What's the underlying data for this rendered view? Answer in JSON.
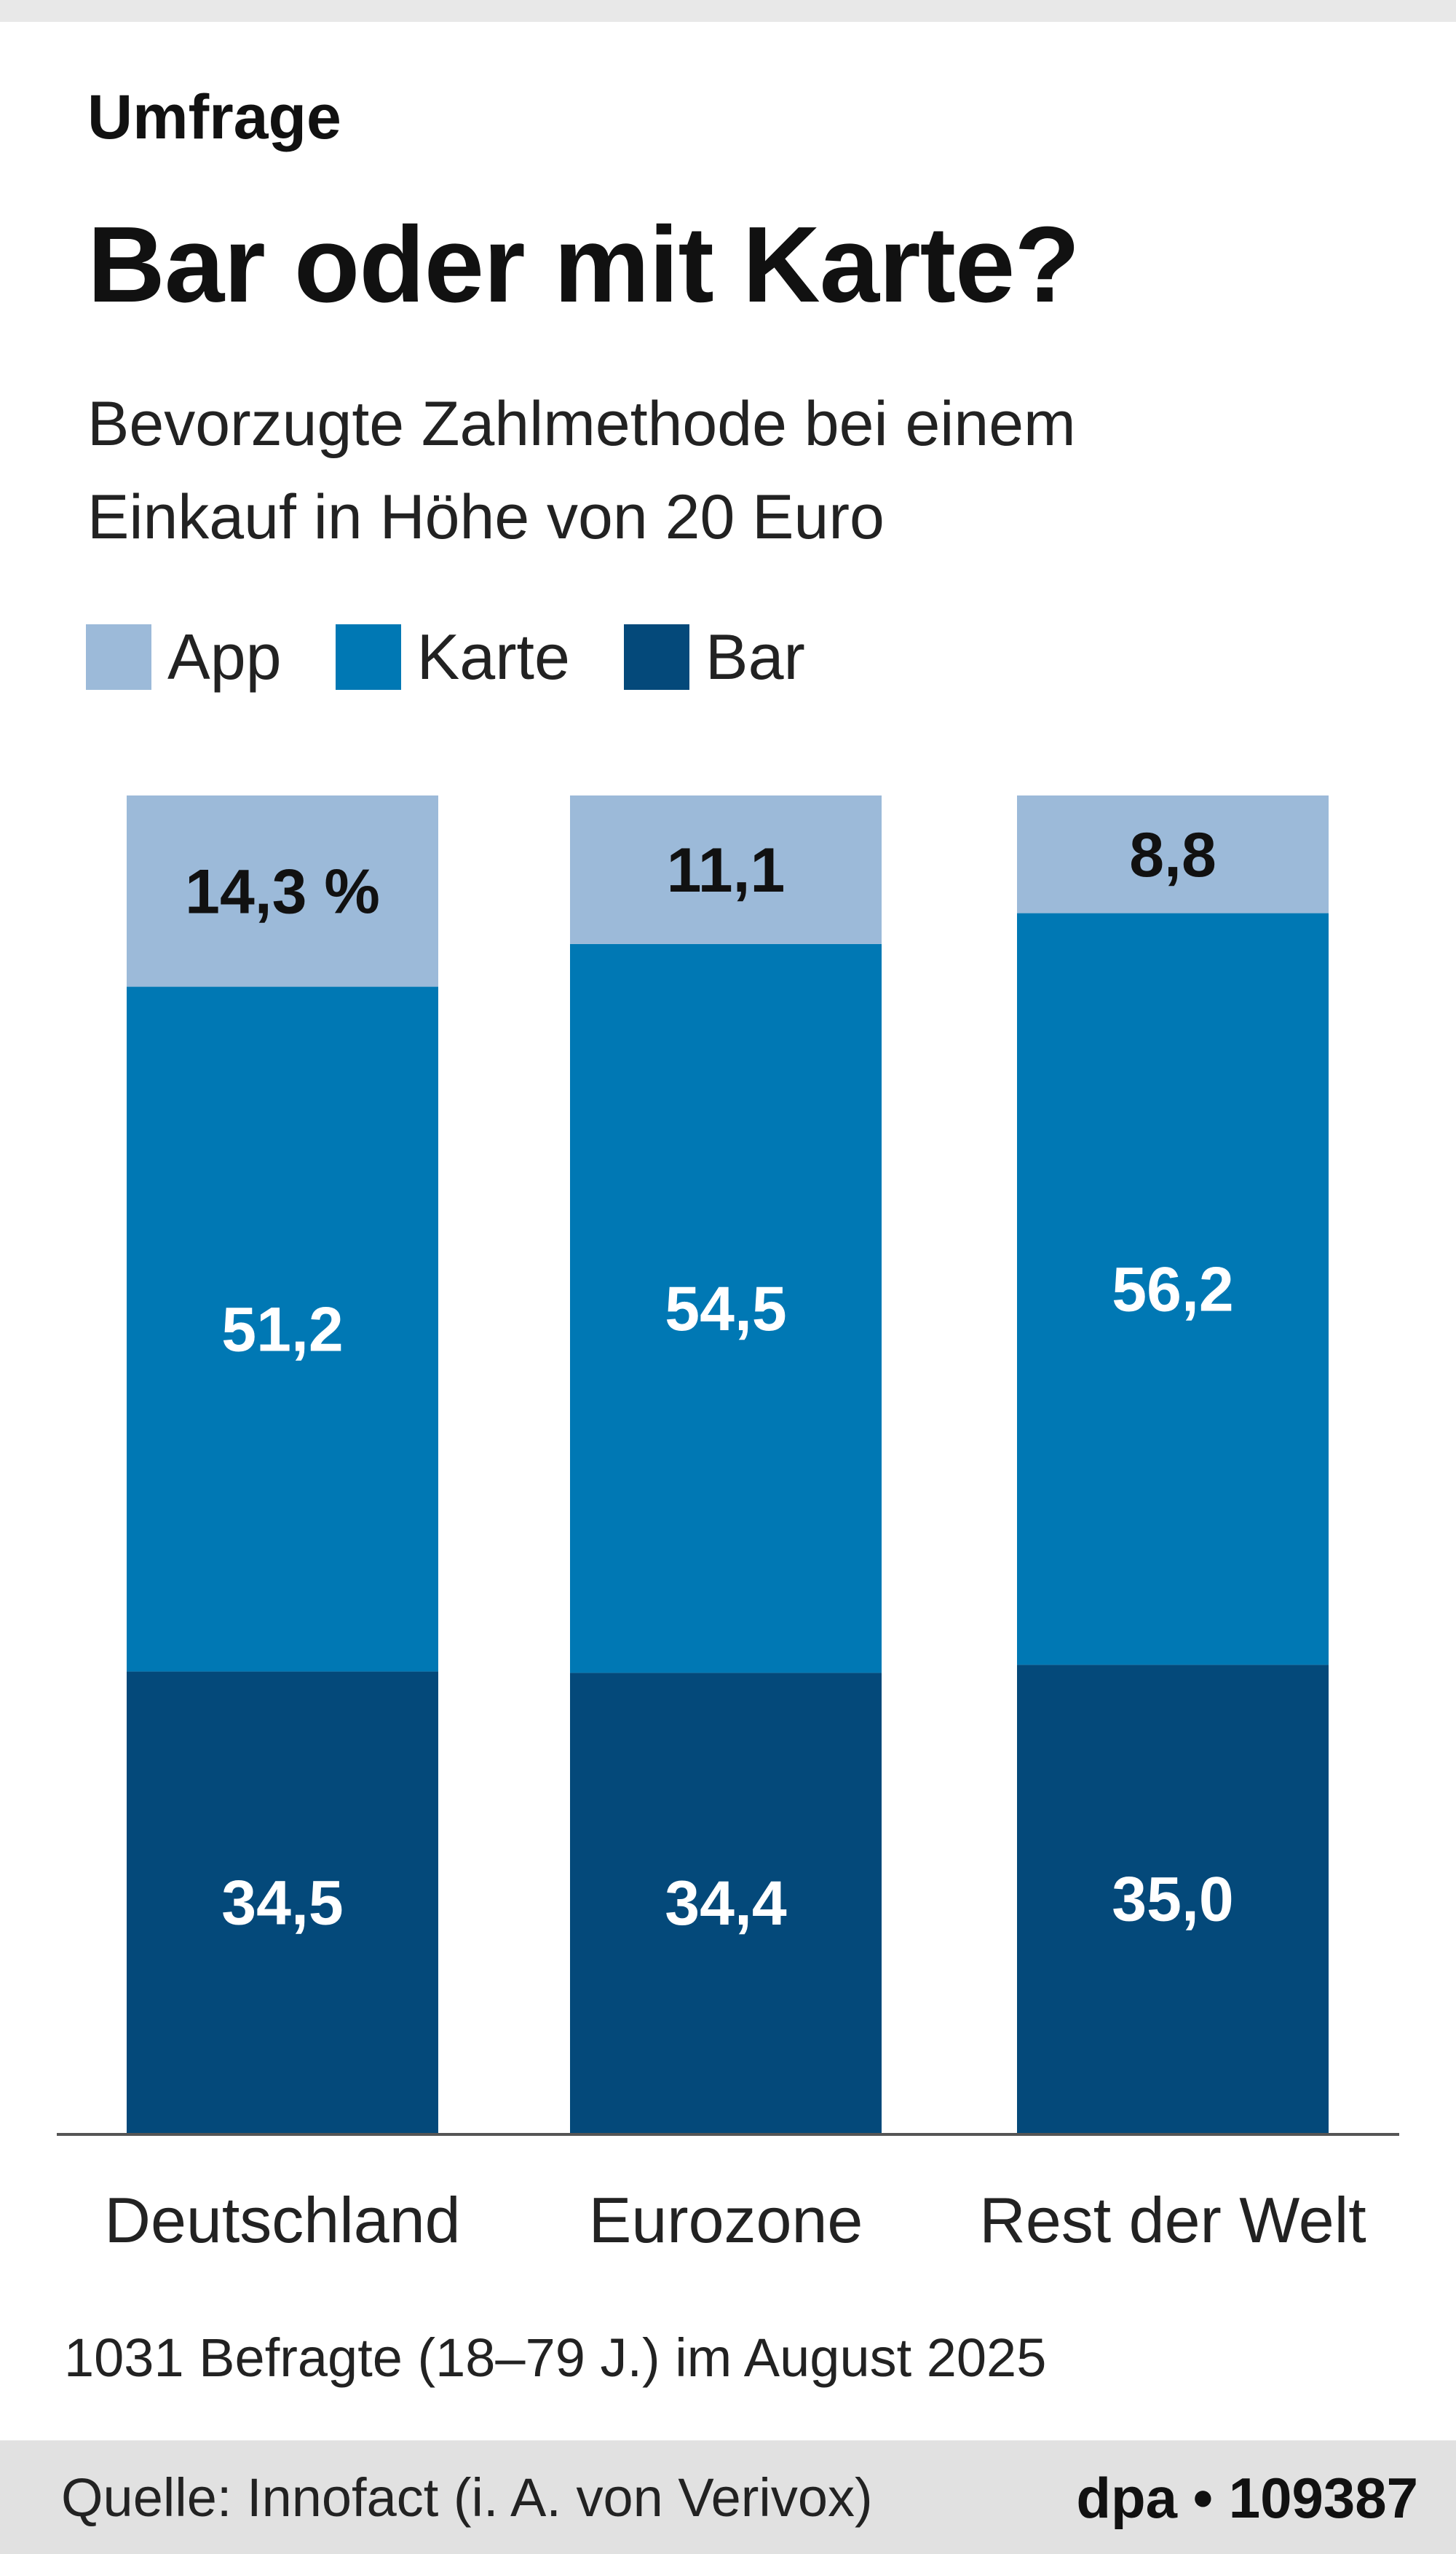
{
  "header": {
    "kicker": "Umfrage",
    "title": "Bar oder mit Karte?",
    "subtitle_line1": "Bevorzugte Zahlmethode bei einem",
    "subtitle_line2": "Einkauf in Höhe von 20 Euro"
  },
  "legend": [
    {
      "label": "App",
      "color": "#9cbad9"
    },
    {
      "label": "Karte",
      "color": "#0078b4"
    },
    {
      "label": "Bar",
      "color": "#04497a"
    }
  ],
  "chart_data": {
    "type": "bar",
    "stacked": true,
    "title": "Bar oder mit Karte?",
    "unit": "%",
    "categories": [
      "Deutschland",
      "Eurozone",
      "Rest der Welt"
    ],
    "series": [
      {
        "name": "Bar",
        "color": "#04497a",
        "label_color": "#ffffff",
        "values": [
          34.5,
          34.4,
          35.0
        ],
        "labels": [
          "34,5",
          "34,4",
          "35,0"
        ]
      },
      {
        "name": "Karte",
        "color": "#0078b4",
        "label_color": "#ffffff",
        "values": [
          51.2,
          54.5,
          56.2
        ],
        "labels": [
          "51,2",
          "54,5",
          "56,2"
        ]
      },
      {
        "name": "App",
        "color": "#9cbad9",
        "label_color": "#111111",
        "values": [
          14.3,
          11.1,
          8.8
        ],
        "labels": [
          "14,3 %",
          "11,1",
          "8,8"
        ]
      }
    ],
    "ylim": [
      0,
      100
    ]
  },
  "footnote": "1031 Befragte (18–79 J.) im August 2025",
  "footer": {
    "source": "Quelle: Innofact (i. A. von Verivox)",
    "agency": "dpa • 109387"
  }
}
